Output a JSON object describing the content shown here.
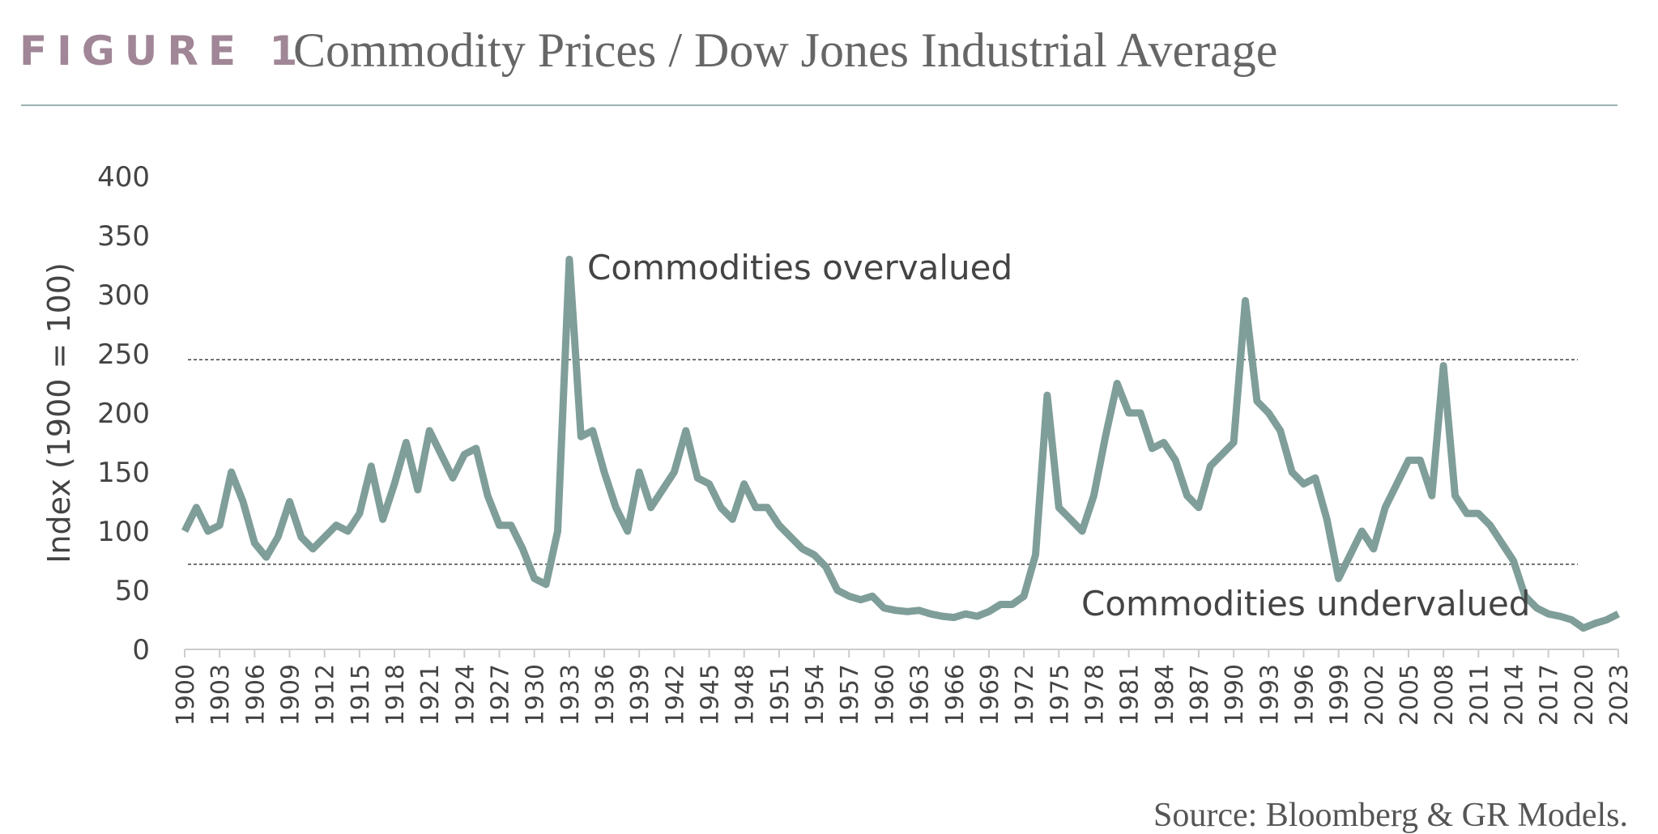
{
  "chart_data": {
    "type": "line",
    "figure_label": "FIGURE 1",
    "title": "Commodity Prices / Dow Jones Industrial Average",
    "ylabel": "Index (1900 = 100)",
    "source": "Source: Bloomberg & GR Models.",
    "annotations": [
      "Commodities overvalued",
      "Commodities undervalued"
    ],
    "reference_lines": [
      245,
      72
    ],
    "color": "#7f9e99",
    "x": [
      1900,
      1901,
      1902,
      1903,
      1904,
      1905,
      1906,
      1907,
      1908,
      1909,
      1910,
      1911,
      1912,
      1913,
      1914,
      1915,
      1916,
      1917,
      1918,
      1919,
      1920,
      1921,
      1922,
      1923,
      1924,
      1925,
      1926,
      1927,
      1928,
      1929,
      1930,
      1931,
      1932,
      1933,
      1934,
      1935,
      1936,
      1937,
      1938,
      1939,
      1940,
      1941,
      1942,
      1943,
      1944,
      1945,
      1946,
      1947,
      1948,
      1949,
      1950,
      1951,
      1952,
      1953,
      1954,
      1955,
      1956,
      1957,
      1958,
      1959,
      1960,
      1961,
      1962,
      1963,
      1964,
      1965,
      1966,
      1967,
      1968,
      1969,
      1970,
      1971,
      1972,
      1973,
      1974,
      1975,
      1976,
      1977,
      1978,
      1979,
      1980,
      1981,
      1982,
      1983,
      1984,
      1985,
      1986,
      1987,
      1988,
      1989,
      1990,
      1991,
      1992,
      1993,
      1994,
      1995,
      1996,
      1997,
      1998,
      1999,
      2000,
      2001,
      2002,
      2003,
      2004,
      2005,
      2006,
      2007,
      2008,
      2009,
      2010,
      2011,
      2012,
      2013,
      2014,
      2015,
      2016,
      2017,
      2018,
      2019,
      2020,
      2021,
      2022,
      2023
    ],
    "values": [
      100,
      120,
      100,
      105,
      150,
      125,
      90,
      78,
      95,
      125,
      95,
      85,
      95,
      105,
      100,
      115,
      155,
      110,
      140,
      175,
      135,
      185,
      165,
      145,
      165,
      170,
      130,
      105,
      105,
      85,
      60,
      55,
      100,
      330,
      180,
      185,
      150,
      120,
      100,
      150,
      120,
      135,
      150,
      185,
      145,
      140,
      120,
      110,
      140,
      120,
      120,
      105,
      95,
      85,
      80,
      70,
      50,
      45,
      42,
      45,
      35,
      33,
      32,
      33,
      30,
      28,
      27,
      30,
      28,
      32,
      38,
      38,
      45,
      80,
      215,
      120,
      110,
      100,
      130,
      180,
      225,
      200,
      200,
      170,
      175,
      160,
      130,
      120,
      155,
      165,
      175,
      295,
      210,
      200,
      185,
      150,
      140,
      145,
      110,
      60,
      80,
      100,
      85,
      120,
      140,
      160,
      160,
      130,
      240,
      130,
      115,
      115,
      105,
      90,
      75,
      45,
      35,
      30,
      28,
      25,
      18,
      22,
      25,
      30
    ],
    "xlim": [
      1900,
      2023
    ],
    "xticks": [
      1900,
      1903,
      1906,
      1909,
      1912,
      1915,
      1918,
      1921,
      1924,
      1927,
      1930,
      1933,
      1936,
      1939,
      1942,
      1945,
      1948,
      1951,
      1954,
      1957,
      1960,
      1963,
      1966,
      1969,
      1972,
      1975,
      1978,
      1981,
      1984,
      1987,
      1990,
      1993,
      1996,
      1999,
      2002,
      2005,
      2008,
      2011,
      2014,
      2017,
      2020,
      2023
    ],
    "ylim": [
      0,
      400
    ],
    "yticks": [
      0,
      50,
      100,
      150,
      200,
      250,
      300,
      350,
      400
    ]
  }
}
